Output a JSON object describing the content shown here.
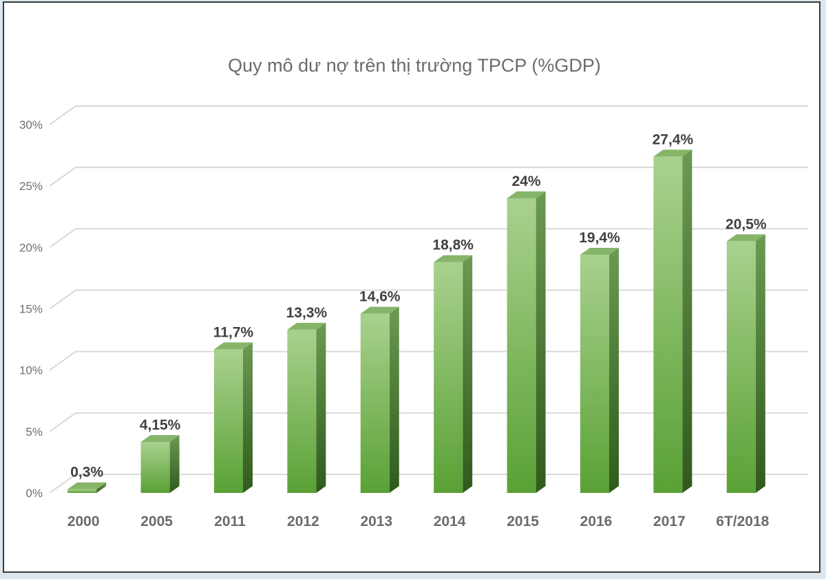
{
  "chart_data": {
    "type": "bar",
    "title": "Quy mô dư nợ trên thị trường TPCP (%GDP)",
    "xlabel": "",
    "ylabel": "",
    "ylim": [
      0,
      30
    ],
    "yticks": [
      0,
      5,
      10,
      15,
      20,
      25,
      30
    ],
    "ytick_labels": [
      "0%",
      "5%",
      "10%",
      "15%",
      "20%",
      "25%",
      "30%"
    ],
    "categories": [
      "2000",
      "2005",
      "2011",
      "2012",
      "2013",
      "2014",
      "2015",
      "2016",
      "2017",
      "6T/2018"
    ],
    "values": [
      0.3,
      4.15,
      11.7,
      13.3,
      14.6,
      18.8,
      24,
      19.4,
      27.4,
      20.5
    ],
    "value_labels": [
      "0,3%",
      "4,15%",
      "11,7%",
      "13,3%",
      "14,6%",
      "18,8%",
      "24%",
      "19,4%",
      "27,4%",
      "20,5%"
    ],
    "grid": true,
    "legend": "none",
    "style": "3d-bar",
    "colors": {
      "bar_top": "#a9d18e",
      "bar_bottom": "#5aa135",
      "bar_side": "#3f6e27",
      "bar_cap": "#86b56a",
      "grid": "#d9d9d9"
    }
  }
}
